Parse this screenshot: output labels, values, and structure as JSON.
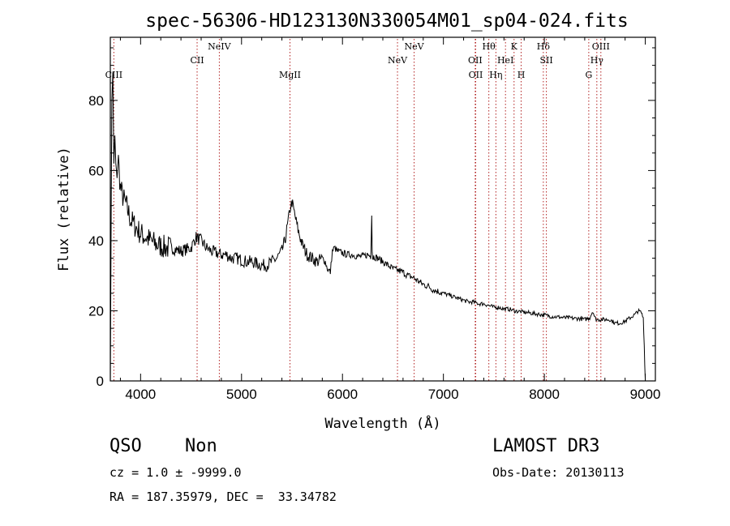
{
  "chart_data": {
    "type": "line",
    "title": "spec-56306-HD123130N330054M01_sp04-024.fits",
    "xlabel": "Wavelength (Å)",
    "ylabel": "Flux (relative)",
    "xlim": [
      3700,
      9100
    ],
    "ylim": [
      0,
      98
    ],
    "xticks": [
      4000,
      5000,
      6000,
      7000,
      8000,
      9000
    ],
    "yticks": [
      0,
      20,
      40,
      60,
      80
    ],
    "series": [
      {
        "name": "spectrum",
        "x": [
          3700,
          3715,
          3725,
          3735,
          3745,
          3760,
          3780,
          3800,
          3830,
          3860,
          3900,
          3950,
          4000,
          4050,
          4100,
          4150,
          4200,
          4250,
          4300,
          4350,
          4400,
          4450,
          4500,
          4550,
          4600,
          4650,
          4700,
          4750,
          4800,
          4850,
          4900,
          4950,
          5000,
          5050,
          5100,
          5150,
          5200,
          5250,
          5300,
          5350,
          5400,
          5430,
          5460,
          5480,
          5500,
          5530,
          5560,
          5600,
          5650,
          5700,
          5750,
          5800,
          5830,
          5850,
          5880,
          5900,
          5920,
          5950,
          6000,
          6050,
          6100,
          6150,
          6200,
          6250,
          6280,
          6290,
          6295,
          6300,
          6310,
          6350,
          6400,
          6450,
          6500,
          6550,
          6600,
          6650,
          6700,
          6750,
          6800,
          6850,
          6900,
          6950,
          7000,
          7050,
          7100,
          7150,
          7200,
          7250,
          7300,
          7350,
          7400,
          7450,
          7500,
          7550,
          7600,
          7650,
          7700,
          7750,
          7800,
          7850,
          7900,
          7950,
          8000,
          8050,
          8100,
          8150,
          8200,
          8250,
          8300,
          8350,
          8400,
          8450,
          8480,
          8500,
          8520,
          8550,
          8600,
          8650,
          8700,
          8750,
          8800,
          8850,
          8900,
          8930,
          8960,
          8980,
          8990,
          9000
        ],
        "y": [
          0,
          80,
          88,
          62,
          70,
          58,
          63,
          55,
          52,
          50,
          46,
          44,
          42,
          41,
          40,
          39,
          38.5,
          38,
          38,
          37.5,
          37,
          37.5,
          38,
          41,
          40,
          38,
          37,
          36.5,
          36,
          36,
          35,
          35,
          34.5,
          34,
          34,
          33.5,
          33,
          33,
          34,
          35,
          37,
          40,
          45,
          49,
          51,
          47,
          43,
          39,
          36,
          35,
          34,
          35,
          34,
          32,
          31,
          37,
          38,
          37,
          36.5,
          36,
          36,
          35.5,
          35.5,
          36,
          35.5,
          48,
          37,
          35,
          35.5,
          35,
          34,
          33,
          32,
          31.5,
          31,
          30,
          29.5,
          28.5,
          27.5,
          27,
          26,
          25.5,
          25,
          24.5,
          24,
          23.5,
          23,
          22.5,
          22.5,
          22,
          22,
          21.5,
          21,
          21,
          20.5,
          20.5,
          20,
          19.8,
          19.6,
          19.4,
          19.2,
          19,
          18.8,
          18.5,
          18.3,
          18.2,
          18,
          18,
          17.8,
          17.8,
          17.5,
          18,
          20,
          18,
          17.5,
          17.5,
          17.5,
          17.5,
          16.5,
          16.5,
          17,
          18,
          19,
          20,
          19.5,
          18,
          10,
          0
        ]
      }
    ],
    "lines": [
      {
        "label": "CIII",
        "wave": 3735,
        "row": 3
      },
      {
        "label": "CII",
        "wave": 4560,
        "row": 2
      },
      {
        "label": "NeIV",
        "wave": 4780,
        "row": 1
      },
      {
        "label": "MgII",
        "wave": 5480,
        "row": 3
      },
      {
        "label": "NeV",
        "wave": 6545,
        "row": 2
      },
      {
        "label": "NeV",
        "wave": 6710,
        "row": 1
      },
      {
        "label": "OII",
        "wave": 7315,
        "row": 2
      },
      {
        "label": "OII",
        "wave": 7320,
        "row": 3
      },
      {
        "label": "Hθ",
        "wave": 7450,
        "row": 1
      },
      {
        "label": "Hη",
        "wave": 7520,
        "row": 3
      },
      {
        "label": "HeI",
        "wave": 7615,
        "row": 2
      },
      {
        "label": "K",
        "wave": 7700,
        "row": 1
      },
      {
        "label": "H",
        "wave": 7770,
        "row": 3
      },
      {
        "label": "Hδ",
        "wave": 7990,
        "row": 1
      },
      {
        "label": "SII",
        "wave": 8020,
        "row": 2
      },
      {
        "label": "G",
        "wave": 8440,
        "row": 3
      },
      {
        "label": "Hγ",
        "wave": 8520,
        "row": 2
      },
      {
        "label": "OIII",
        "wave": 8560,
        "row": 1
      }
    ]
  },
  "info": {
    "class": "QSO",
    "subclass": "Non",
    "cz": "cz = 1.0 ± -9999.0",
    "radec": "RA = 187.35979, DEC =  33.34782",
    "survey": "LAMOST DR3",
    "obsdate": "Obs-Date: 20130113"
  },
  "colors": {
    "spectrum": "#000000",
    "lines": "#b22222",
    "axes": "#000000"
  }
}
